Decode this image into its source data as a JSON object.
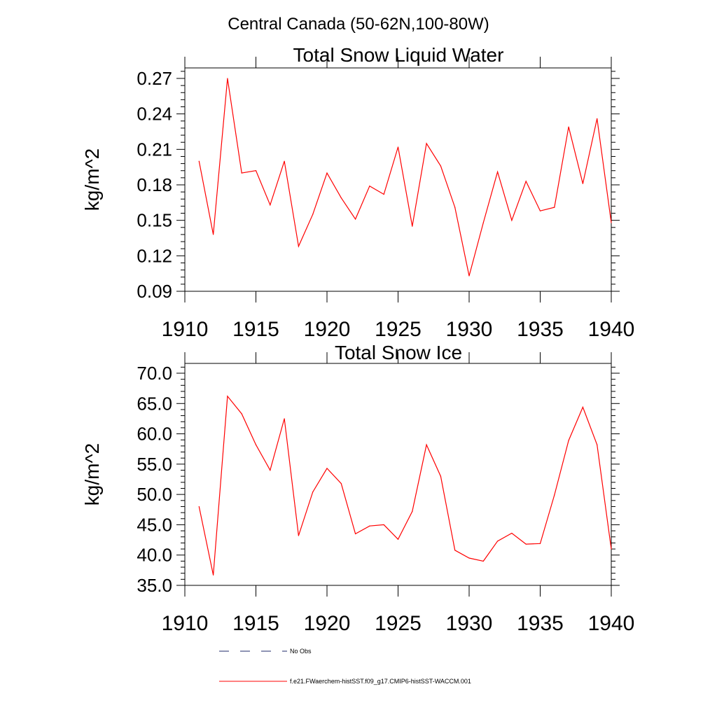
{
  "figure": {
    "suptitle": "Central Canada (50-62N,100-80W)"
  },
  "legend": {
    "entries": [
      {
        "label": "No Obs",
        "color": "#1f2a6b",
        "style": "dashed"
      },
      {
        "label": "f.e21.FWaerchem-histSST.f09_g17.CMIP6-histSST-WACCM.001",
        "color": "#ff0000",
        "style": "solid"
      }
    ]
  },
  "chart_data": [
    {
      "type": "line",
      "title": "Total Snow Liquid Water",
      "xlabel": "",
      "ylabel": "kg/m^2",
      "xlim": [
        1910,
        1940
      ],
      "ylim": [
        0.09,
        0.279
      ],
      "xticks": [
        1910,
        1915,
        1920,
        1925,
        1930,
        1935,
        1940
      ],
      "xtick_labels": [
        "1910",
        "1915",
        "1920",
        "1925",
        "1930",
        "1935",
        "1940"
      ],
      "yticks": [
        0.09,
        0.12,
        0.15,
        0.18,
        0.21,
        0.24,
        0.27
      ],
      "ytick_labels": [
        "0.09",
        "0.12",
        "0.15",
        "0.18",
        "0.21",
        "0.24",
        "0.27"
      ],
      "grid": false,
      "series": [
        {
          "color": "#ff0000",
          "x": [
            1911,
            1912,
            1913,
            1914,
            1915,
            1916,
            1917,
            1918,
            1919,
            1920,
            1921,
            1922,
            1923,
            1924,
            1925,
            1926,
            1927,
            1928,
            1929,
            1930,
            1931,
            1932,
            1933,
            1934,
            1935,
            1936,
            1937,
            1938,
            1939,
            1940
          ],
          "y": [
            0.2,
            0.138,
            0.27,
            0.19,
            0.192,
            0.163,
            0.2,
            0.128,
            0.155,
            0.19,
            0.169,
            0.151,
            0.179,
            0.172,
            0.212,
            0.145,
            0.215,
            0.196,
            0.161,
            0.103,
            0.148,
            0.191,
            0.15,
            0.183,
            0.158,
            0.161,
            0.229,
            0.181,
            0.236,
            0.148
          ]
        }
      ]
    },
    {
      "type": "line",
      "title": "Total Snow Ice",
      "xlabel": "",
      "ylabel": "kg/m^2",
      "xlim": [
        1910,
        1940
      ],
      "ylim": [
        35.0,
        70.0
      ],
      "xticks": [
        1910,
        1915,
        1920,
        1925,
        1930,
        1935,
        1940
      ],
      "xtick_labels": [
        "1910",
        "1915",
        "1920",
        "1925",
        "1930",
        "1935",
        "1940"
      ],
      "yticks": [
        35.0,
        40.0,
        45.0,
        50.0,
        55.0,
        60.0,
        65.0,
        70.0
      ],
      "ytick_labels": [
        "35.0",
        "40.0",
        "45.0",
        "50.0",
        "55.0",
        "60.0",
        "65.0",
        "70.0"
      ],
      "grid": false,
      "series": [
        {
          "color": "#ff0000",
          "x": [
            1911,
            1912,
            1913,
            1914,
            1915,
            1916,
            1917,
            1918,
            1919,
            1920,
            1921,
            1922,
            1923,
            1924,
            1925,
            1926,
            1927,
            1928,
            1929,
            1930,
            1931,
            1932,
            1933,
            1934,
            1935,
            1936,
            1937,
            1938,
            1939,
            1940
          ],
          "y": [
            48.0,
            36.7,
            66.2,
            63.3,
            58.2,
            54.0,
            62.5,
            43.2,
            50.4,
            54.3,
            51.8,
            43.5,
            44.8,
            45.0,
            42.6,
            47.2,
            58.2,
            53.0,
            40.8,
            39.5,
            39.0,
            42.3,
            43.6,
            41.8,
            41.9,
            49.9,
            58.9,
            64.4,
            58.2,
            41.0
          ]
        }
      ]
    }
  ]
}
